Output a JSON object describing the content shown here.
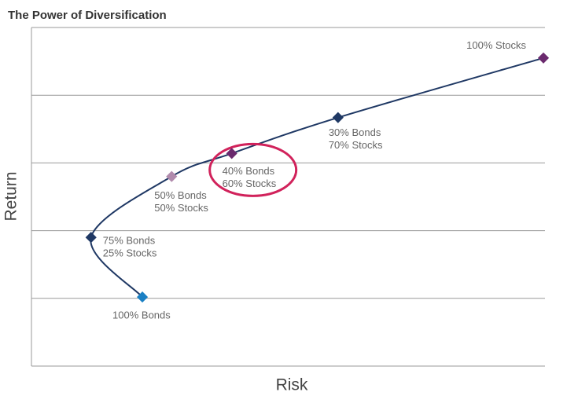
{
  "chart_data": {
    "type": "line",
    "title": "The Power of Diversification",
    "xlabel": "Risk",
    "ylabel": "Return",
    "xlim": [
      0,
      10
    ],
    "ylim": [
      0,
      5
    ],
    "ygrid": [
      1,
      2,
      3,
      4,
      5
    ],
    "line_color": "#1f3864",
    "x": [
      2.16,
      1.16,
      2.73,
      3.9,
      5.97,
      9.97
    ],
    "values": [
      1.02,
      1.9,
      2.8,
      3.14,
      3.67,
      4.55
    ],
    "point_colors": [
      "#1a80c4",
      "#1f3864",
      "#b08aac",
      "#6b2a6e",
      "#1f3864",
      "#6b2a6e"
    ],
    "point_labels": [
      [
        "100% Bonds"
      ],
      [
        "75% Bonds",
        "25% Stocks"
      ],
      [
        "50% Bonds",
        "50% Stocks"
      ],
      [
        "40% Bonds",
        "60% Stocks"
      ],
      [
        "30% Bonds",
        "70% Stocks"
      ],
      [
        "100% Stocks"
      ]
    ],
    "highlight_point": 3,
    "highlight_color": "#d1225b"
  }
}
